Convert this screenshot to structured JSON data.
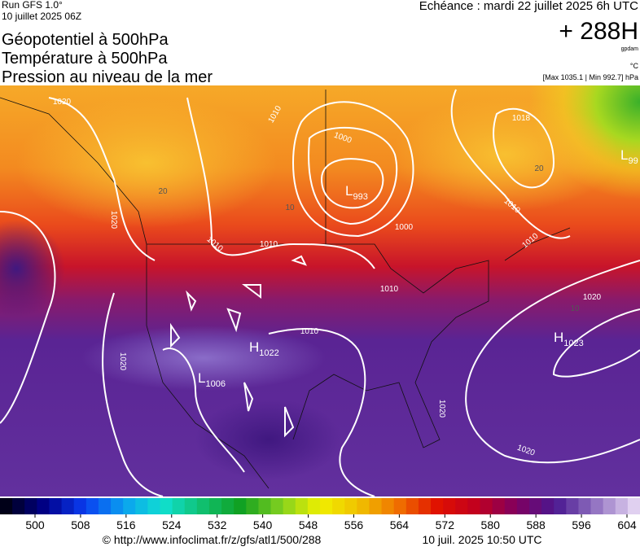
{
  "header": {
    "run": "Run GFS 1.0°",
    "run_date": "10 juillet 2025 06Z",
    "forecast": "Echéance : mardi 22 juillet 2025 6h UTC",
    "lead": "+ 288H",
    "unit_geo": "gpdam",
    "unit_temp": "°C",
    "range": "[Max 1035.1 | Min 992.7] hPa"
  },
  "titles": [
    "Géopotentiel à 500hPa",
    "Température à 500hPa",
    "Pression au niveau de la mer"
  ],
  "centers": [
    {
      "letter": "L",
      "value": "993"
    },
    {
      "letter": "H",
      "value": "1022"
    },
    {
      "letter": "L",
      "value": "1006"
    },
    {
      "letter": "H",
      "value": "1023"
    },
    {
      "letter": "L",
      "value": "99"
    }
  ],
  "isobar_labels": [
    "1020",
    "1010",
    "1000",
    "1000",
    "1010",
    "1010",
    "1010",
    "1010",
    "1020",
    "1020",
    "1020",
    "1018",
    "1010",
    "1020",
    "1020",
    "1010"
  ],
  "temp_labels": [
    "20",
    "10",
    "20",
    "10"
  ],
  "colorbar": {
    "ticks": [
      500,
      508,
      516,
      524,
      532,
      540,
      548,
      556,
      564,
      572,
      580,
      588,
      596,
      604
    ],
    "colors": [
      "#000018",
      "#00008a",
      "#0a3cf0",
      "#0aa0f0",
      "#10e0d0",
      "#10c070",
      "#10a020",
      "#80d020",
      "#f0f000",
      "#f0c000",
      "#f07000",
      "#e01000",
      "#c00020",
      "#800060",
      "#4a1890",
      "#9070c0",
      "#e0d0f0"
    ]
  },
  "footer": {
    "url": "© http://www.infoclimat.fr/z/gfs/atl1/500/288",
    "timestamp": "10 juil. 2025 10:50 UTC"
  }
}
